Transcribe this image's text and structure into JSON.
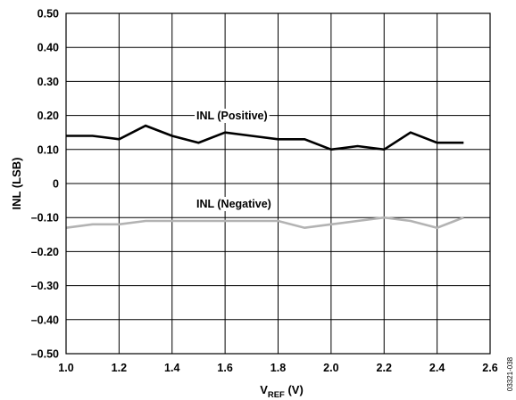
{
  "chart_data": {
    "type": "line",
    "xlabel": {
      "main": "V",
      "sub": "REF",
      "rest": " (V)"
    },
    "ylabel": "INL (LSB)",
    "xlim": [
      1.0,
      2.6
    ],
    "ylim": [
      -0.5,
      0.5
    ],
    "x_ticks": [
      "1.0",
      "1.2",
      "1.4",
      "1.6",
      "1.8",
      "2.0",
      "2.2",
      "2.4",
      "2.6"
    ],
    "y_ticks": [
      "0.50",
      "0.40",
      "0.30",
      "0.20",
      "0.10",
      "0",
      "–0.10",
      "–0.20",
      "–0.30",
      "–0.40",
      "–0.50"
    ],
    "grid": true,
    "series": [
      {
        "name": "INL (Positive)",
        "color": "#000000",
        "x": [
          1.0,
          1.1,
          1.2,
          1.3,
          1.4,
          1.5,
          1.6,
          1.7,
          1.8,
          1.9,
          2.0,
          2.1,
          2.2,
          2.3,
          2.4,
          2.5
        ],
        "y": [
          0.14,
          0.14,
          0.13,
          0.17,
          0.14,
          0.12,
          0.15,
          0.14,
          0.13,
          0.13,
          0.1,
          0.11,
          0.1,
          0.15,
          0.12,
          0.12
        ]
      },
      {
        "name": "INL (Negative)",
        "color": "#b3b3b3",
        "x": [
          1.0,
          1.1,
          1.2,
          1.3,
          1.4,
          1.5,
          1.6,
          1.7,
          1.8,
          1.9,
          2.0,
          2.1,
          2.2,
          2.3,
          2.4,
          2.5
        ],
        "y": [
          -0.13,
          -0.12,
          -0.12,
          -0.11,
          -0.11,
          -0.11,
          -0.11,
          -0.11,
          -0.11,
          -0.13,
          -0.12,
          -0.11,
          -0.1,
          -0.11,
          -0.13,
          -0.1
        ]
      }
    ],
    "annotations": [
      "INL (Positive)",
      "INL (Negative)"
    ],
    "figure_id": "03321-038"
  }
}
